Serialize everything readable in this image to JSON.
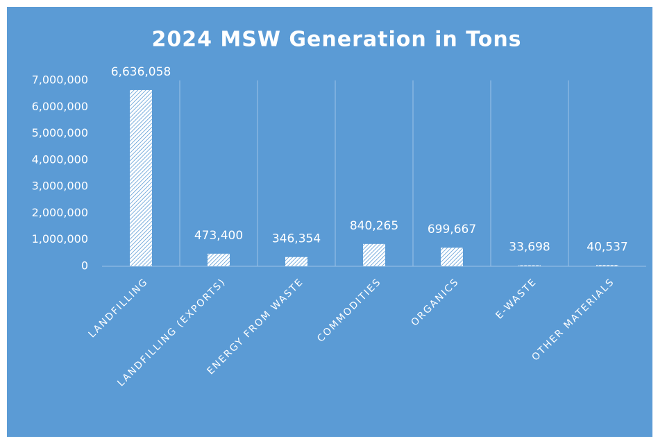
{
  "chart_data": {
    "type": "bar",
    "title": "2024 MSW Generation in Tons",
    "categories": [
      "LANDFILLING",
      "LANDFILLING (EXPORTS)",
      "ENERGY FROM WASTE",
      "COMMODITIES",
      "ORGANICS",
      "E-WASTE",
      "OTHER MATERIALS"
    ],
    "values": [
      6636058,
      473400,
      346354,
      840265,
      699667,
      33698,
      40537
    ],
    "value_labels": [
      "6,636,058",
      "473,400",
      "346,354",
      "840,265",
      "699,667",
      "33,698",
      "40,537"
    ],
    "color": "#ffffff",
    "background": "#5b9bd5",
    "ylim": [
      0,
      7000000
    ],
    "yticks": [
      0,
      {
        "value": 1000000,
        "label": "1,000,000"
      },
      {
        "value": 2000000,
        "label": "2,000,000"
      },
      {
        "value": 3000000,
        "label": "3,000,000"
      },
      {
        "value": 4000000,
        "label": "4,000,000"
      },
      {
        "value": 5000000,
        "label": "5,000,000"
      },
      {
        "value": 6000000,
        "label": "6,000,000"
      },
      {
        "value": 7000000,
        "label": "7,000,000"
      }
    ],
    "grid": true
  }
}
